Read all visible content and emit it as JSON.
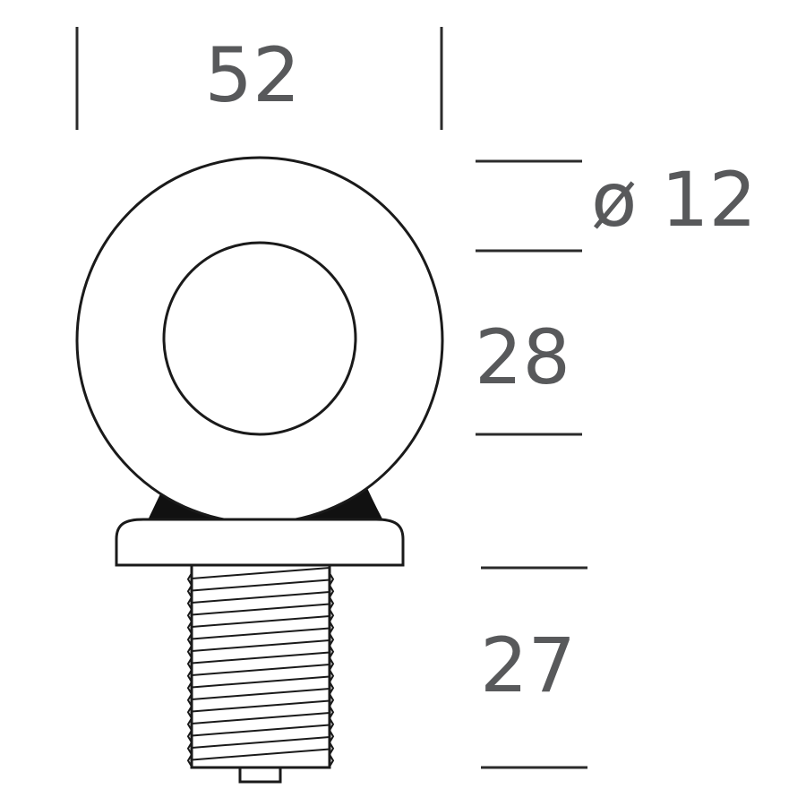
{
  "dimensions": {
    "width": "52",
    "ring_diameter": "ø 12",
    "eye_height": "28",
    "thread_length": "27"
  },
  "colors": {
    "outline": "#1a1a1a",
    "dimension_text": "#58595b",
    "background": "#ffffff"
  }
}
